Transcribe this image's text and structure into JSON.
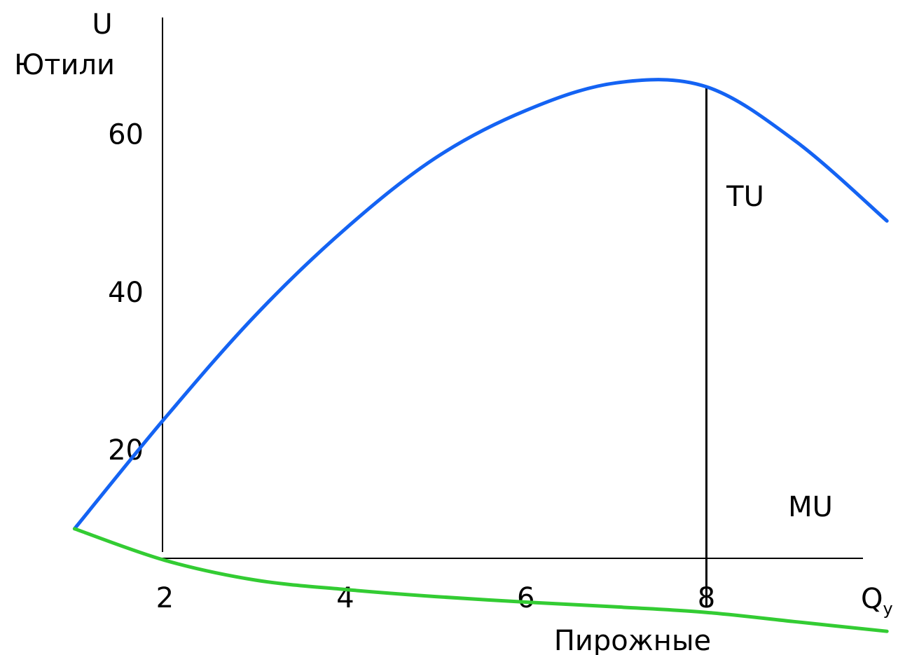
{
  "chart_data": {
    "type": "line",
    "title": "",
    "ylabel_top": "U",
    "ylabel": "Ютили",
    "xlabel": "Пирожные",
    "x_end_label": "Q",
    "x_end_sub": "y",
    "x_ticks": [
      2,
      4,
      6,
      8
    ],
    "x_tick_labels": [
      "2",
      "4",
      "6",
      "8"
    ],
    "y_ticks": [
      20,
      40,
      60
    ],
    "y_tick_labels": [
      "20",
      "40",
      "60"
    ],
    "xlim": [
      0.5,
      10.2
    ],
    "ylim": [
      -6,
      77
    ],
    "marker_x": 8,
    "colors": {
      "TU": "#1463f3",
      "MU": "#33cc33"
    },
    "series": [
      {
        "name": "TU",
        "x": [
          1,
          2,
          3,
          4,
          5,
          6,
          7,
          8,
          9,
          10
        ],
        "y": [
          10,
          24,
          37,
          48,
          57,
          63,
          66.5,
          66,
          59,
          49
        ]
      },
      {
        "name": "MU",
        "x": [
          1,
          2,
          3,
          4,
          5,
          6,
          7,
          8,
          9,
          10
        ],
        "y": [
          10,
          6,
          3.5,
          2.3,
          1.4,
          0.7,
          0.1,
          -0.6,
          -1.8,
          -3
        ]
      }
    ]
  }
}
